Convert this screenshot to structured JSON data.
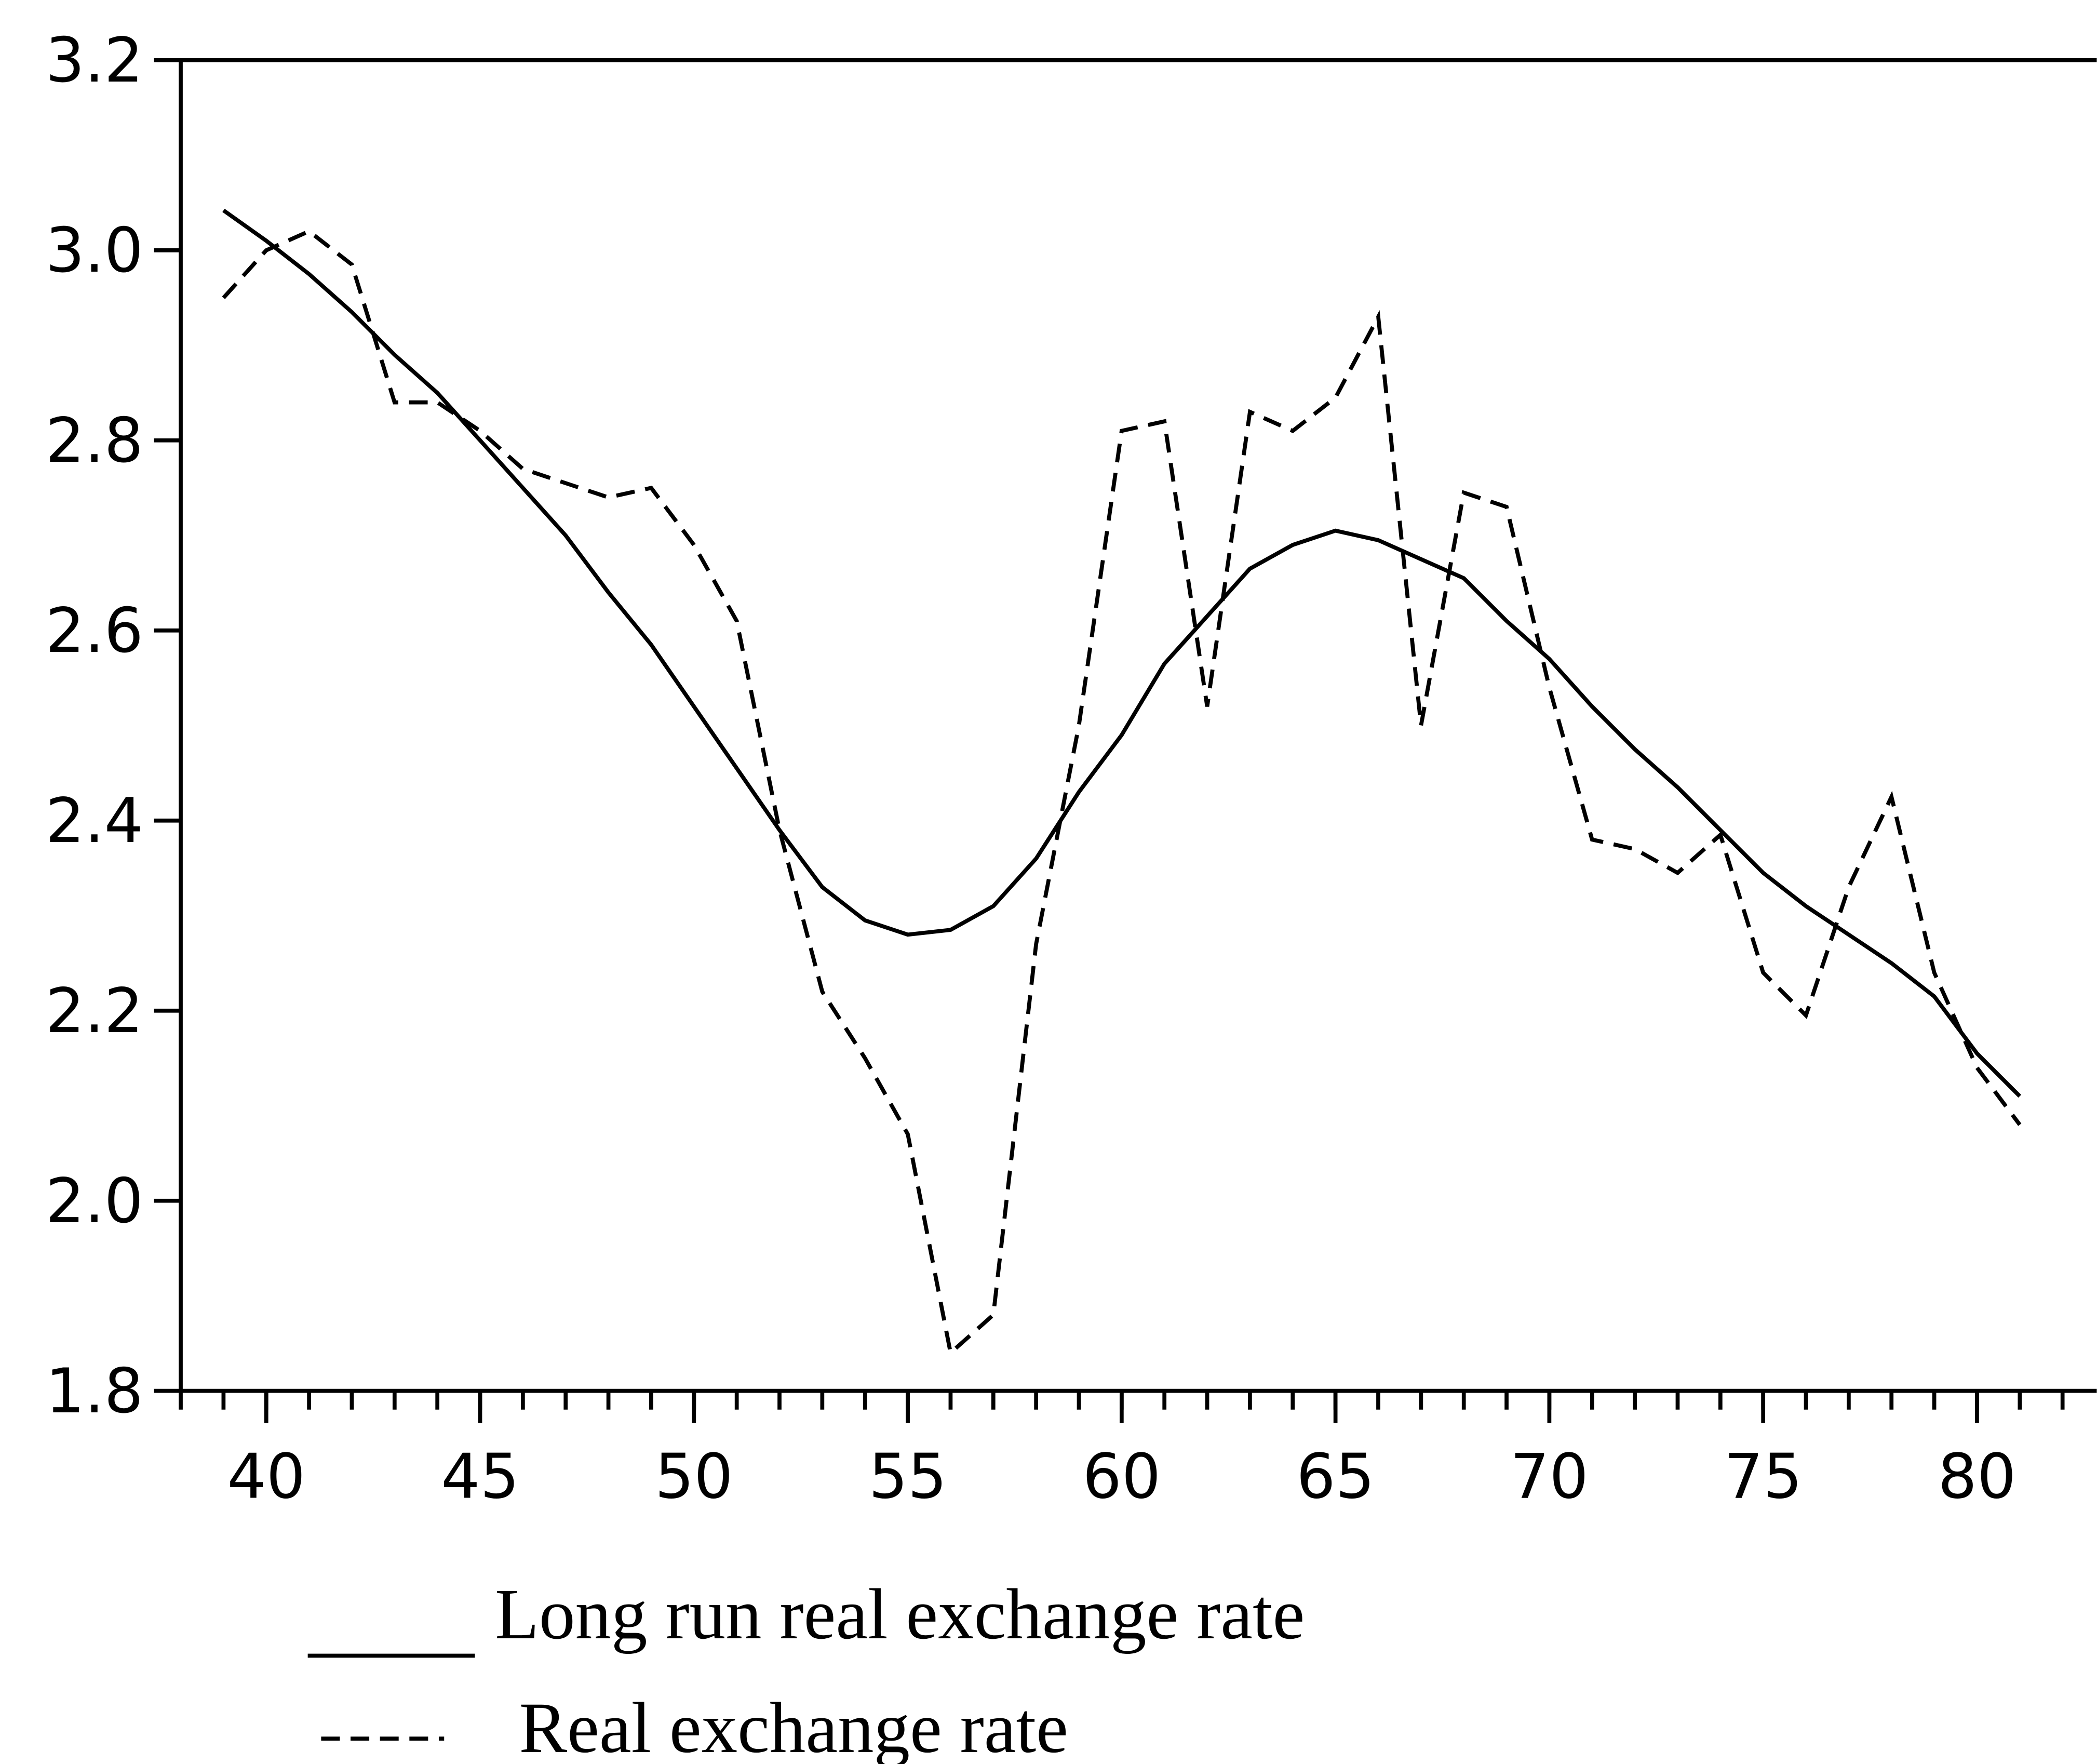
{
  "chart_data": {
    "type": "line",
    "x": [
      39,
      40,
      41,
      42,
      43,
      44,
      45,
      46,
      47,
      48,
      49,
      50,
      51,
      52,
      53,
      54,
      55,
      56,
      57,
      58,
      59,
      60,
      61,
      62,
      63,
      64,
      65,
      66,
      67,
      68,
      69,
      70,
      71,
      72,
      73,
      74,
      75,
      76,
      77,
      78,
      79,
      80,
      81
    ],
    "series": [
      {
        "name": "Long run real exchange rate",
        "color": "#000000",
        "style": "solid",
        "values": [
          3.042,
          3.01,
          2.975,
          2.935,
          2.89,
          2.85,
          2.8,
          2.75,
          2.7,
          2.64,
          2.585,
          2.52,
          2.455,
          2.39,
          2.33,
          2.295,
          2.28,
          2.285,
          2.31,
          2.36,
          2.43,
          2.49,
          2.565,
          2.615,
          2.665,
          2.69,
          2.705,
          2.695,
          2.675,
          2.655,
          2.61,
          2.57,
          2.52,
          2.475,
          2.435,
          2.39,
          2.345,
          2.31,
          2.28,
          2.25,
          2.215,
          2.155,
          2.11
        ]
      },
      {
        "name": "Real exchange rate",
        "color": "#000000",
        "style": "dashed",
        "values": [
          2.95,
          3.0,
          3.02,
          2.985,
          2.84,
          2.84,
          2.81,
          2.77,
          2.755,
          2.74,
          2.75,
          2.69,
          2.61,
          2.39,
          2.22,
          2.15,
          2.07,
          1.84,
          1.88,
          2.27,
          2.5,
          2.81,
          2.82,
          2.52,
          2.83,
          2.81,
          2.845,
          2.93,
          2.5,
          2.745,
          2.73,
          2.54,
          2.38,
          2.37,
          2.345,
          2.385,
          2.24,
          2.195,
          2.33,
          2.425,
          2.24,
          2.14,
          2.08
        ]
      }
    ],
    "xlim": [
      38,
      82.8
    ],
    "xticks": [
      40,
      45,
      50,
      55,
      60,
      65,
      70,
      75,
      80
    ],
    "ylim": [
      1.8,
      3.2
    ],
    "yticks": [
      1.8,
      {
        "value": 2.0,
        "label": "2.0"
      },
      2.2,
      2.4,
      2.6,
      2.8,
      {
        "value": 3.0,
        "label": "3.0"
      },
      3.2
    ],
    "grid": false,
    "minor_xticks": true
  }
}
